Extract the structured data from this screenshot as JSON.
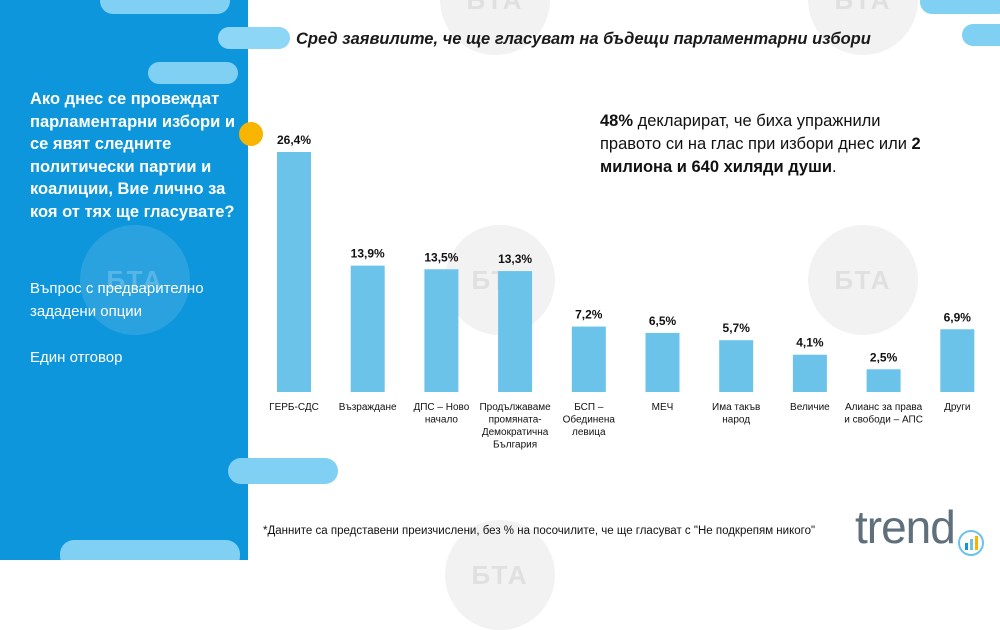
{
  "sidebar": {
    "question": "Ако днес се провеждат парламентарни избори и се явят следните политически партии и коалиции, Вие лично за коя от тях ще гласувате?",
    "note1": "Въпрос с предварително зададени опции",
    "note2": "Един отговор",
    "bg_color": "#0d96dc"
  },
  "watermark": "БТА",
  "callout": {
    "pct": "48%",
    "text1": " декларират, че биха упражнили правото си на глас при избори днес или ",
    "bold2": "2 милиона и 640 хиляди души",
    "end": "."
  },
  "footnote": "*Данните са представени преизчислени, без % на посочилите, че ще гласуват с \"Не подкрепям никого\"",
  "logo": "trend",
  "chart_data": {
    "type": "bar",
    "title": "Сред заявилите, че ще гласуват на бъдещи парламентарни избори",
    "categories": [
      "ГЕРБ-СДС",
      "Възраждане",
      "ДПС – Ново начало",
      "Продължаваме промяната-Демократична България",
      "БСП – Обединена левица",
      "МЕЧ",
      "Има такъв народ",
      "Величие",
      "Алианс за права и свободи – АПС",
      "Други"
    ],
    "category_lines": [
      [
        "ГЕРБ-СДС"
      ],
      [
        "Възраждане"
      ],
      [
        "ДПС – Ново",
        "начало"
      ],
      [
        "Продължаваме",
        "промяната-",
        "Демократична",
        "България"
      ],
      [
        "БСП –",
        "Обединена",
        "левица"
      ],
      [
        "МЕЧ"
      ],
      [
        "Има такъв",
        "народ"
      ],
      [
        "Величие"
      ],
      [
        "Алианс за права",
        "и свободи – АПС"
      ],
      [
        "Други"
      ]
    ],
    "values": [
      26.4,
      13.9,
      13.5,
      13.3,
      7.2,
      6.5,
      5.7,
      4.1,
      2.5,
      6.9
    ],
    "value_labels": [
      "26,4%",
      "13,9%",
      "13,5%",
      "13,3%",
      "7,2%",
      "6,5%",
      "5,7%",
      "4,1%",
      "2,5%",
      "6,9%"
    ],
    "ylim": [
      0,
      26.4
    ],
    "grid": false,
    "bar_color": "#6cc3ea"
  }
}
